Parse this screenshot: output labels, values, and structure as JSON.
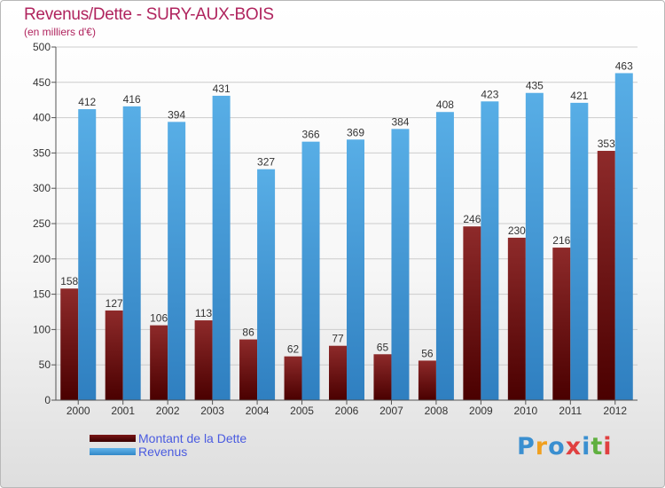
{
  "header": {
    "title": "Revenus/Dette - SURY-AUX-BOIS",
    "subtitle": "(en milliers d'€)"
  },
  "chart_data": {
    "type": "bar",
    "title": "Revenus/Dette - SURY-AUX-BOIS",
    "ylabel": "(en milliers d'€)",
    "xlabel": "",
    "ylim": [
      0,
      500
    ],
    "yticks": [
      0,
      50,
      100,
      150,
      200,
      250,
      300,
      350,
      400,
      450,
      500
    ],
    "grid": true,
    "legend_position": "bottom-left",
    "categories": [
      "2000",
      "2001",
      "2002",
      "2003",
      "2004",
      "2005",
      "2006",
      "2007",
      "2008",
      "2009",
      "2010",
      "2011",
      "2012"
    ],
    "series": [
      {
        "name": "Montant de la Dette",
        "color": "#8b1a1a",
        "values": [
          158,
          127,
          106,
          113,
          86,
          62,
          77,
          65,
          56,
          246,
          230,
          216,
          353
        ]
      },
      {
        "name": "Revenus",
        "color": "#4aa3e0",
        "values": [
          412,
          416,
          394,
          431,
          327,
          366,
          369,
          384,
          408,
          423,
          435,
          421,
          463
        ]
      }
    ]
  },
  "legend": {
    "items": [
      {
        "label": "Montant de la Dette",
        "color": "#6b0f0f"
      },
      {
        "label": "Revenus",
        "color": "#4aa3e0"
      }
    ]
  },
  "logo": {
    "letters": [
      "P",
      "r",
      "o",
      "x",
      "i",
      "t",
      "i"
    ],
    "colors": [
      "#3a8fd0",
      "#f0a020",
      "#3a8fd0",
      "#e04040",
      "#3a8fd0",
      "#60b040",
      "#e04040"
    ]
  }
}
